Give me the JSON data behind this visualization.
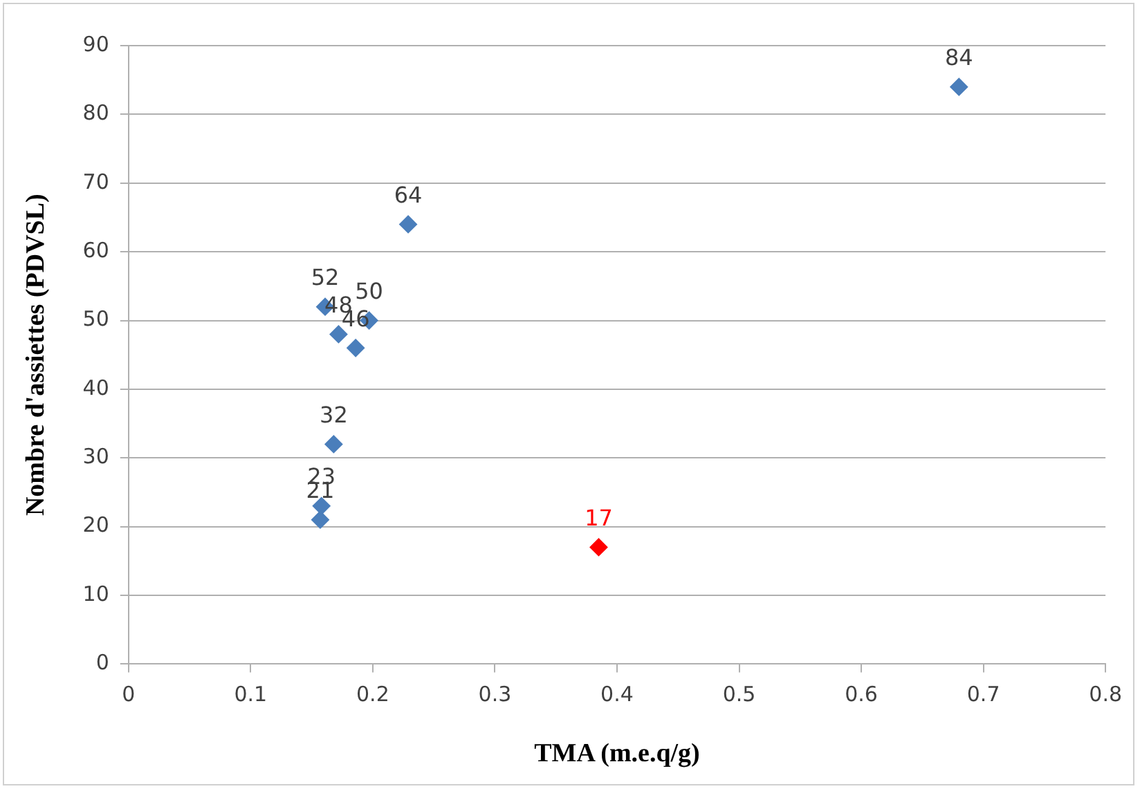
{
  "chart_data": {
    "type": "scatter",
    "xlabel": "TMA (m.e.q/g)",
    "ylabel": "Nombre d'assiettes (PDVSL)",
    "xlim": [
      0,
      0.8
    ],
    "xticks": [
      0,
      0.1,
      0.2,
      0.3,
      0.4,
      0.5,
      0.6,
      0.7,
      0.8
    ],
    "ylim": [
      0,
      90
    ],
    "yticks": [
      0,
      10,
      20,
      30,
      40,
      50,
      60,
      70,
      80,
      90
    ],
    "grid": "y",
    "legend": false,
    "marker": "diamond",
    "data_labels": true,
    "series": [
      {
        "color": "#4a7ebb",
        "x": [
          0.68,
          0.229,
          0.161,
          0.172,
          0.197,
          0.186,
          0.168,
          0.158,
          0.157
        ],
        "values": [
          84,
          64,
          52,
          48,
          50,
          46,
          32,
          23,
          21
        ]
      },
      {
        "color": "#ff0000",
        "x": [
          0.385
        ],
        "values": [
          17
        ]
      }
    ]
  }
}
